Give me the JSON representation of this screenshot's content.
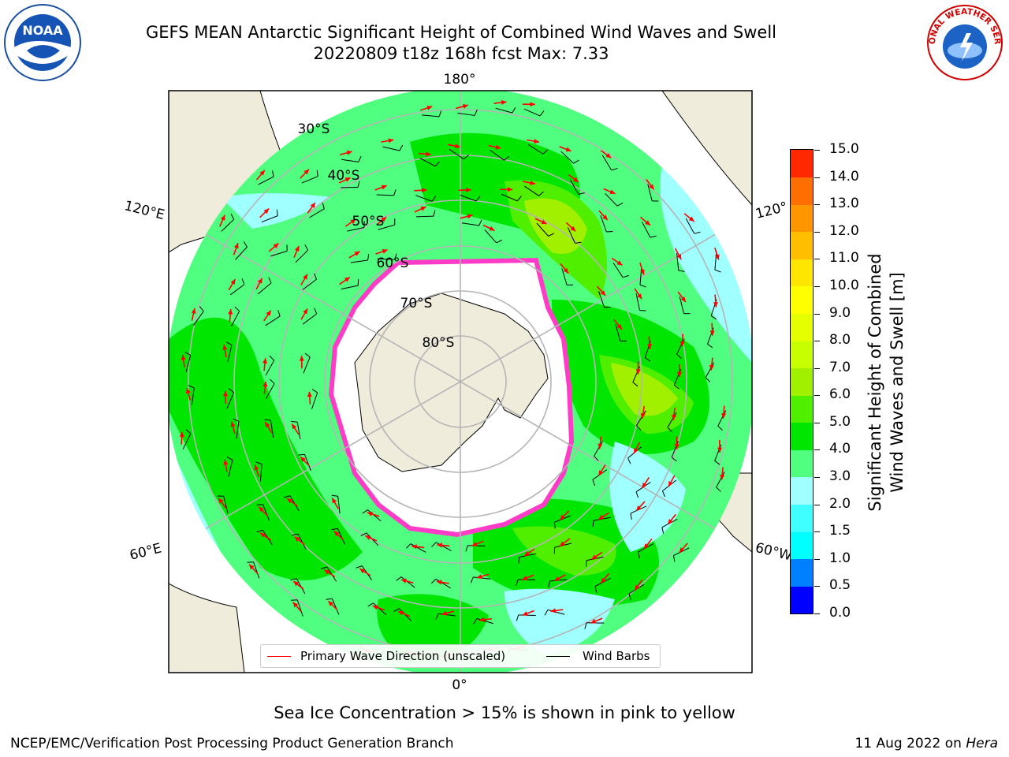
{
  "header": {
    "title_line1": "GEFS MEAN Antarctic Significant Height of Combined Wind Waves and Swell",
    "title_line2": "20220809 t18z 168h fcst   Max: 7.33"
  },
  "logos": {
    "left": "NOAA",
    "right": "NATIONAL WEATHER SERVICE"
  },
  "map": {
    "projection": "south-polar-stereographic",
    "lon_labels": {
      "top": "180°",
      "bottom": "0°",
      "upper_left": "120°E",
      "upper_right": "120°",
      "lower_left": "60°E",
      "lower_right": "60°W"
    },
    "lat_labels": [
      "30°S",
      "40°S",
      "50°S",
      "60°S",
      "70°S",
      "80°S"
    ],
    "colors": {
      "ocean_mask": "#ffffff",
      "land": "#efecdc",
      "graticule": "#b5b5b5",
      "wave_arrow": "#ff0000",
      "wind_barb": "#000000",
      "sea_ice": "#ff3cc8"
    }
  },
  "colorbar": {
    "label_line1": "Significant Height of Combined",
    "label_line2": "Wind Waves and Swell [m]",
    "ticks": [
      "0.0",
      "0.5",
      "1.0",
      "1.5",
      "2.0",
      "3.0",
      "4.0",
      "5.0",
      "6.0",
      "7.0",
      "8.0",
      "9.0",
      "10.0",
      "11.0",
      "12.0",
      "13.0",
      "14.0",
      "15.0"
    ],
    "colors": [
      "#0000ff",
      "#0080ff",
      "#00ffff",
      "#40ffff",
      "#a0ffff",
      "#50ff80",
      "#00e600",
      "#50ef00",
      "#a0f000",
      "#c8ff00",
      "#e6ff00",
      "#ffff00",
      "#ffe600",
      "#ffbe00",
      "#ff9600",
      "#ff6e00",
      "#ff2800"
    ]
  },
  "legend": {
    "wave_label": "Primary Wave Direction (unscaled)",
    "barb_label": "Wind Barbs"
  },
  "note": "Sea Ice Concentration > 15% is shown in pink to yellow",
  "footer": {
    "left": "NCEP/EMC/Verification Post Processing Product Generation Branch",
    "right_date": "11 Aug 2022 on",
    "right_host": "Hera"
  }
}
